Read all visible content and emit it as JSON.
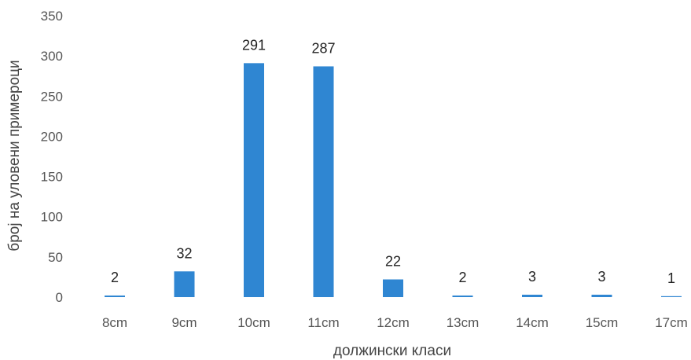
{
  "chart_data": {
    "type": "bar",
    "title": "",
    "xlabel": "должински класи",
    "ylabel": "број на уловени примероци",
    "categories": [
      "8cm",
      "9cm",
      "10cm",
      "11cm",
      "12cm",
      "13cm",
      "14cm",
      "15cm",
      "17cm"
    ],
    "values": [
      2,
      32,
      291,
      287,
      22,
      2,
      3,
      3,
      1
    ],
    "data_labels": [
      "2",
      "32",
      "291",
      "287",
      "22",
      "2",
      "3",
      "3",
      "1"
    ],
    "yticks": [
      "0",
      "50",
      "100",
      "150",
      "200",
      "250",
      "300",
      "350"
    ],
    "ylim": [
      0,
      350
    ],
    "grid": false,
    "legend": "none",
    "bar_color": "#2f86d2"
  }
}
